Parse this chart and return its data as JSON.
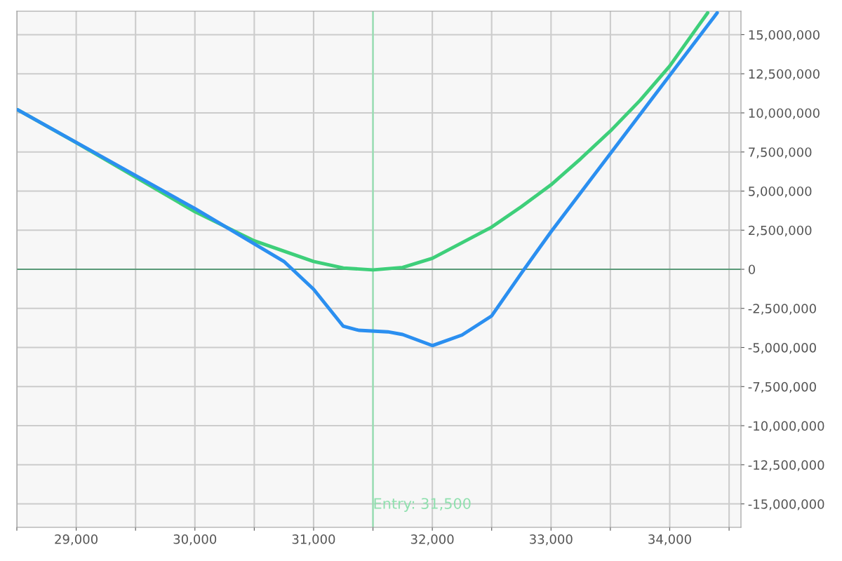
{
  "chart_data": {
    "type": "line",
    "series": [
      {
        "color": "#3ecf7a",
        "x": [
          28508,
          29000,
          30000,
          30500,
          31000,
          31250,
          31500,
          31750,
          32000,
          32250,
          32500,
          32750,
          33000,
          33250,
          33500,
          33750,
          34000,
          34244,
          34320
        ],
        "values": [
          10200000,
          8100000,
          3680000,
          1820000,
          500000,
          80000,
          -40000,
          120000,
          700000,
          1700000,
          2700000,
          4000000,
          5400000,
          7070000,
          8840000,
          10800000,
          13000000,
          15600000,
          16400000
        ]
      },
      {
        "color": "#2b8ff0",
        "x": [
          28508,
          30000,
          30750,
          31000,
          31250,
          31380,
          31625,
          31750,
          32000,
          32250,
          32500,
          32750,
          33000,
          34400
        ],
        "values": [
          10200000,
          3880000,
          500000,
          -1280000,
          -3640000,
          -3900000,
          -4000000,
          -4170000,
          -4880000,
          -4200000,
          -2980000,
          -250000,
          2400000,
          16400000
        ]
      }
    ],
    "xlim": [
      28500,
      34600
    ],
    "ylim": [
      -16500000,
      16500000
    ],
    "xticks": [
      {
        "value": 28500,
        "label": null
      },
      {
        "value": 29000,
        "label": "29,000"
      },
      {
        "value": 29500,
        "label": null
      },
      {
        "value": 30000,
        "label": "30,000"
      },
      {
        "value": 30500,
        "label": null
      },
      {
        "value": 31000,
        "label": "31,000"
      },
      {
        "value": 31500,
        "label": null
      },
      {
        "value": 32000,
        "label": "32,000"
      },
      {
        "value": 32500,
        "label": null
      },
      {
        "value": 33000,
        "label": "33,000"
      },
      {
        "value": 33500,
        "label": null
      },
      {
        "value": 34000,
        "label": "34,000"
      },
      {
        "value": 34500,
        "label": null
      }
    ],
    "yticks": [
      {
        "value": -15000000,
        "label": "-15,000,000"
      },
      {
        "value": -12500000,
        "label": "-12,500,000"
      },
      {
        "value": -10000000,
        "label": "-10,000,000"
      },
      {
        "value": -7500000,
        "label": "-7,500,000"
      },
      {
        "value": -5000000,
        "label": "-5,000,000"
      },
      {
        "value": -2500000,
        "label": "-2,500,000"
      },
      0,
      {
        "value": 2500000,
        "label": "2,500,000"
      },
      {
        "value": 5000000,
        "label": "5,000,000"
      },
      {
        "value": 7500000,
        "label": "7,500,000"
      },
      {
        "value": 10000000,
        "label": "10,000,000"
      },
      {
        "value": 12500000,
        "label": "12,500,000"
      },
      {
        "value": 15000000,
        "label": "15,000,000"
      }
    ],
    "ref_lines": [
      {
        "axis": "x",
        "value": 31500,
        "label": "Entry: 31,500",
        "color": "#8fe0ae"
      },
      {
        "axis": "y",
        "value": 0,
        "label": null,
        "color": "#5a9a78"
      }
    ],
    "grid": true,
    "legend": false,
    "marker": "none",
    "line_style": "solid"
  }
}
